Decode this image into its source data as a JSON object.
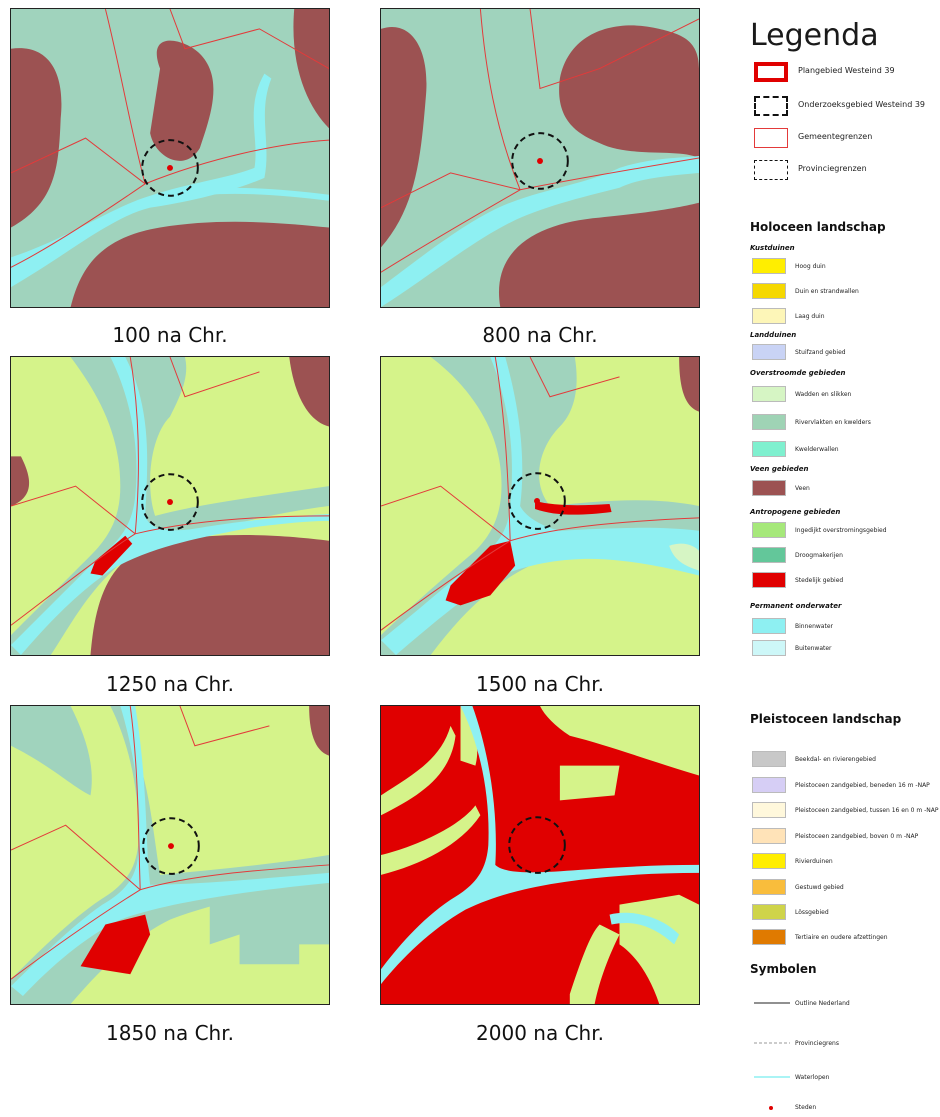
{
  "maps": [
    {
      "caption": "100 na Chr."
    },
    {
      "caption": "800 na Chr."
    },
    {
      "caption": "1250 na Chr."
    },
    {
      "caption": "1500 na Chr."
    },
    {
      "caption": "1850 na Chr."
    },
    {
      "caption": "2000 na Chr."
    }
  ],
  "legend": {
    "title": "Legenda",
    "items": [
      {
        "label": "Plangebied Westeind 39"
      },
      {
        "label": "Onderzoeksgebied Westeind 39"
      },
      {
        "label": "Gemeentegrenzen"
      },
      {
        "label": "Provinciegrenzen"
      }
    ]
  },
  "holoceen": {
    "title": "Holoceen landschap",
    "groups": [
      {
        "title": "Kustduinen",
        "items": [
          {
            "label": "Hoog duin",
            "color": "#ffee00"
          },
          {
            "label": "Duin en strandwallen",
            "color": "#f5d800"
          },
          {
            "label": "Laag duin",
            "color": "#fdf6b8"
          }
        ]
      },
      {
        "title": "Landduinen",
        "items": [
          {
            "label": "Stuifzand gebied",
            "color": "#c9d3f5"
          }
        ]
      },
      {
        "title": "Overstroomde gebieden",
        "items": [
          {
            "label": "Wadden en slikken",
            "color": "#d6f5c4"
          },
          {
            "label": "Rivervlakten en kwelders",
            "color": "#9fd3b5"
          },
          {
            "label": "Kwelderwallen",
            "color": "#7ff0cf"
          }
        ]
      },
      {
        "title": "Veen gebieden",
        "items": [
          {
            "label": "Veen",
            "color": "#9c5252"
          }
        ]
      },
      {
        "title": "Antropogene gebieden",
        "items": [
          {
            "label": "Ingedijkt overstromingsgebied",
            "color": "#a6e87a"
          },
          {
            "label": "Droogmakerijen",
            "color": "#63c79a"
          },
          {
            "label": "Stedelijk gebied",
            "color": "#e00000"
          }
        ]
      },
      {
        "title": "Permanent onderwater",
        "items": [
          {
            "label": "Binnenwater",
            "color": "#8ef0f2"
          },
          {
            "label": "Buitenwater",
            "color": "#cdf7f8"
          }
        ]
      }
    ]
  },
  "pleistoceen": {
    "title": "Pleistoceen landschap",
    "items": [
      {
        "label": "Beekdal- en rivierengebied",
        "color": "#c8c8c8"
      },
      {
        "label": "Pleistoceen zandgebied, beneden 16 m -NAP",
        "color": "#d6cef5"
      },
      {
        "label": "Pleistoceen zandgebied, tussen 16 en 0 m -NAP",
        "color": "#fff8dc"
      },
      {
        "label": "Pleistoceen zandgebied, boven 0 m -NAP",
        "color": "#ffe3b8"
      },
      {
        "label": "Rivierduinen",
        "color": "#ffee00"
      },
      {
        "label": "Gestuwd gebied",
        "color": "#f9bd3c"
      },
      {
        "label": "Lössgebied",
        "color": "#cfd44a"
      },
      {
        "label": "Tertiaire en oudere afzettingen",
        "color": "#e07a00"
      }
    ]
  },
  "symbolen": {
    "title": "Symbolen",
    "items": [
      {
        "label": "Outline Nederland"
      },
      {
        "label": "Provinciegrens"
      },
      {
        "label": "Waterlopen"
      },
      {
        "label": "Steden"
      }
    ]
  }
}
